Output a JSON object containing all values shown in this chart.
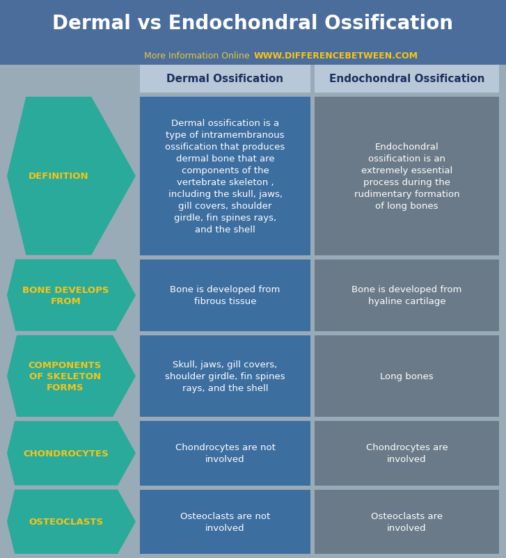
{
  "title": "Dermal vs Endochondral Ossification",
  "subtitle_normal": "More Information Online ",
  "subtitle_bold": "WWW.DIFFERENCEBETWEEN.COM",
  "col1_header": "Dermal Ossification",
  "col2_header": "Endochondral Ossification",
  "bg_color": "#9aabb8",
  "header_bg": "#4a6d9c",
  "col1_header_bg": "#b8c8d8",
  "col2_header_bg": "#b8c8d8",
  "col1_bg": "#3d6ea0",
  "col2_bg": "#6a7a88",
  "arrow_bg": "#2aaa9a",
  "arrow_text_color": "#f5c518",
  "title_color": "#ffffff",
  "subtitle_normal_color": "#e8c840",
  "subtitle_bold_color": "#f5c518",
  "header_text_color": "#1a3060",
  "cell_text_color": "#ffffff",
  "rows": [
    {
      "label": "DEFINITION",
      "col1": "Dermal ossification is a\ntype of intramembranous\nossification that produces\ndermal bone that are\ncomponents of the\nvertebrate skeleton ,\nincluding the skull, jaws,\ngill covers, shoulder\ngirdle, fin spines rays,\nand the shell",
      "col2": "Endochondral\nossification is an\nextremely essential\nprocess during the\nrudimentary formation\nof long bones"
    },
    {
      "label": "BONE DEVELOPS\nFROM",
      "col1": "Bone is developed from\nfibrous tissue",
      "col2": "Bone is developed from\nhyaline cartilage"
    },
    {
      "label": "COMPONENTS\nOF SKELETON\nFORMS",
      "col1": "Skull, jaws, gill covers,\nshoulder girdle, fin spines\nrays, and the shell",
      "col2": "Long bones"
    },
    {
      "label": "CHONDROCYTES",
      "col1": "Chondrocytes are not\ninvolved",
      "col2": "Chondrocytes are\ninvolved"
    },
    {
      "label": "OSTEOCLASTS",
      "col1": "Osteoclasts are not\ninvolved",
      "col2": "Osteoclasts are\ninvolved"
    }
  ],
  "row_height_factors": [
    3.2,
    1.45,
    1.65,
    1.3,
    1.3
  ]
}
